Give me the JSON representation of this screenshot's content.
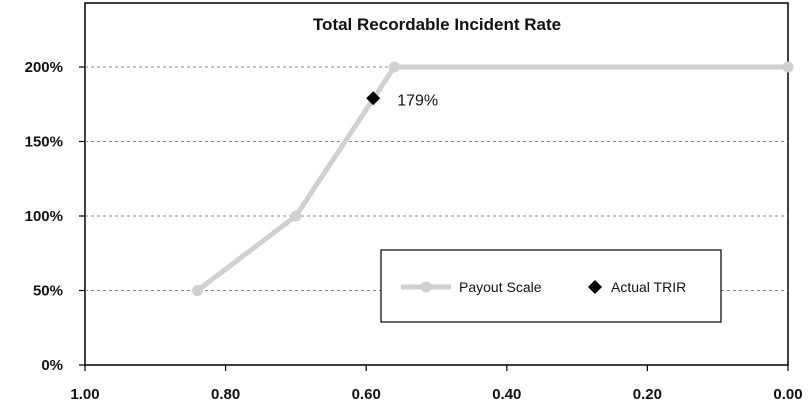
{
  "chart_data": {
    "type": "line",
    "title": "Total Recordable Incident Rate",
    "xlabel": "",
    "ylabel": "",
    "xlim": [
      1.0,
      0.0
    ],
    "x_reversed": true,
    "ylim": [
      0,
      200
    ],
    "x_ticks": [
      "1.00",
      "0.80",
      "0.60",
      "0.40",
      "0.20",
      "0.00"
    ],
    "x_tick_values": [
      1.0,
      0.8,
      0.6,
      0.4,
      0.2,
      0.0
    ],
    "y_ticks": [
      "0%",
      "50%",
      "100%",
      "150%",
      "200%"
    ],
    "y_tick_values": [
      0,
      50,
      100,
      150,
      200
    ],
    "grid": "horizontal-dashed",
    "legend_position": "bottom-right",
    "series": [
      {
        "name": "Payout Scale",
        "color": "#d0d0d0",
        "marker": "circle",
        "points": [
          {
            "x": 0.84,
            "y": 50
          },
          {
            "x": 0.7,
            "y": 100
          },
          {
            "x": 0.56,
            "y": 200
          },
          {
            "x": 0.0,
            "y": 200
          }
        ]
      },
      {
        "name": "Actual TRIR",
        "color": "#000000",
        "marker": "diamond",
        "points": [
          {
            "x": 0.59,
            "y": 179
          }
        ]
      }
    ],
    "annotations": [
      {
        "text": "179%",
        "x": 0.59,
        "y": 179
      }
    ]
  }
}
